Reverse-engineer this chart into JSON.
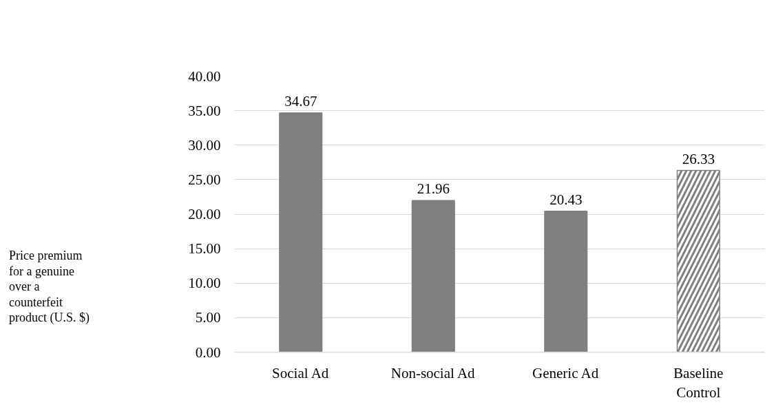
{
  "chart_data": {
    "type": "bar",
    "annotations": [
      "Price premium\nfor a genuine\nover a\ncounterfeit\nproduct (U.S. $)"
    ],
    "categories": [
      "Social Ad",
      "Non-social Ad",
      "Generic Ad",
      "Baseline\nControl"
    ],
    "values": [
      34.67,
      21.96,
      20.43,
      26.33
    ],
    "colors": [
      "#7f7f7f",
      "#7f7f7f",
      "#7f7f7f",
      "#ffffff"
    ],
    "ylim": [
      0,
      40
    ],
    "yticks": [
      {
        "value": 0,
        "label": "0.00"
      },
      {
        "value": 5,
        "label": "5.00"
      },
      {
        "value": 10,
        "label": "10.00"
      },
      {
        "value": 15,
        "label": "15.00"
      },
      {
        "value": 20,
        "label": "20.00"
      },
      {
        "value": 25,
        "label": "25.00"
      },
      {
        "value": 30,
        "label": "30.00"
      },
      {
        "value": 35,
        "label": "35.00"
      },
      {
        "value": 40,
        "label": "40.00"
      }
    ],
    "grid": "y",
    "data_labels": true
  }
}
